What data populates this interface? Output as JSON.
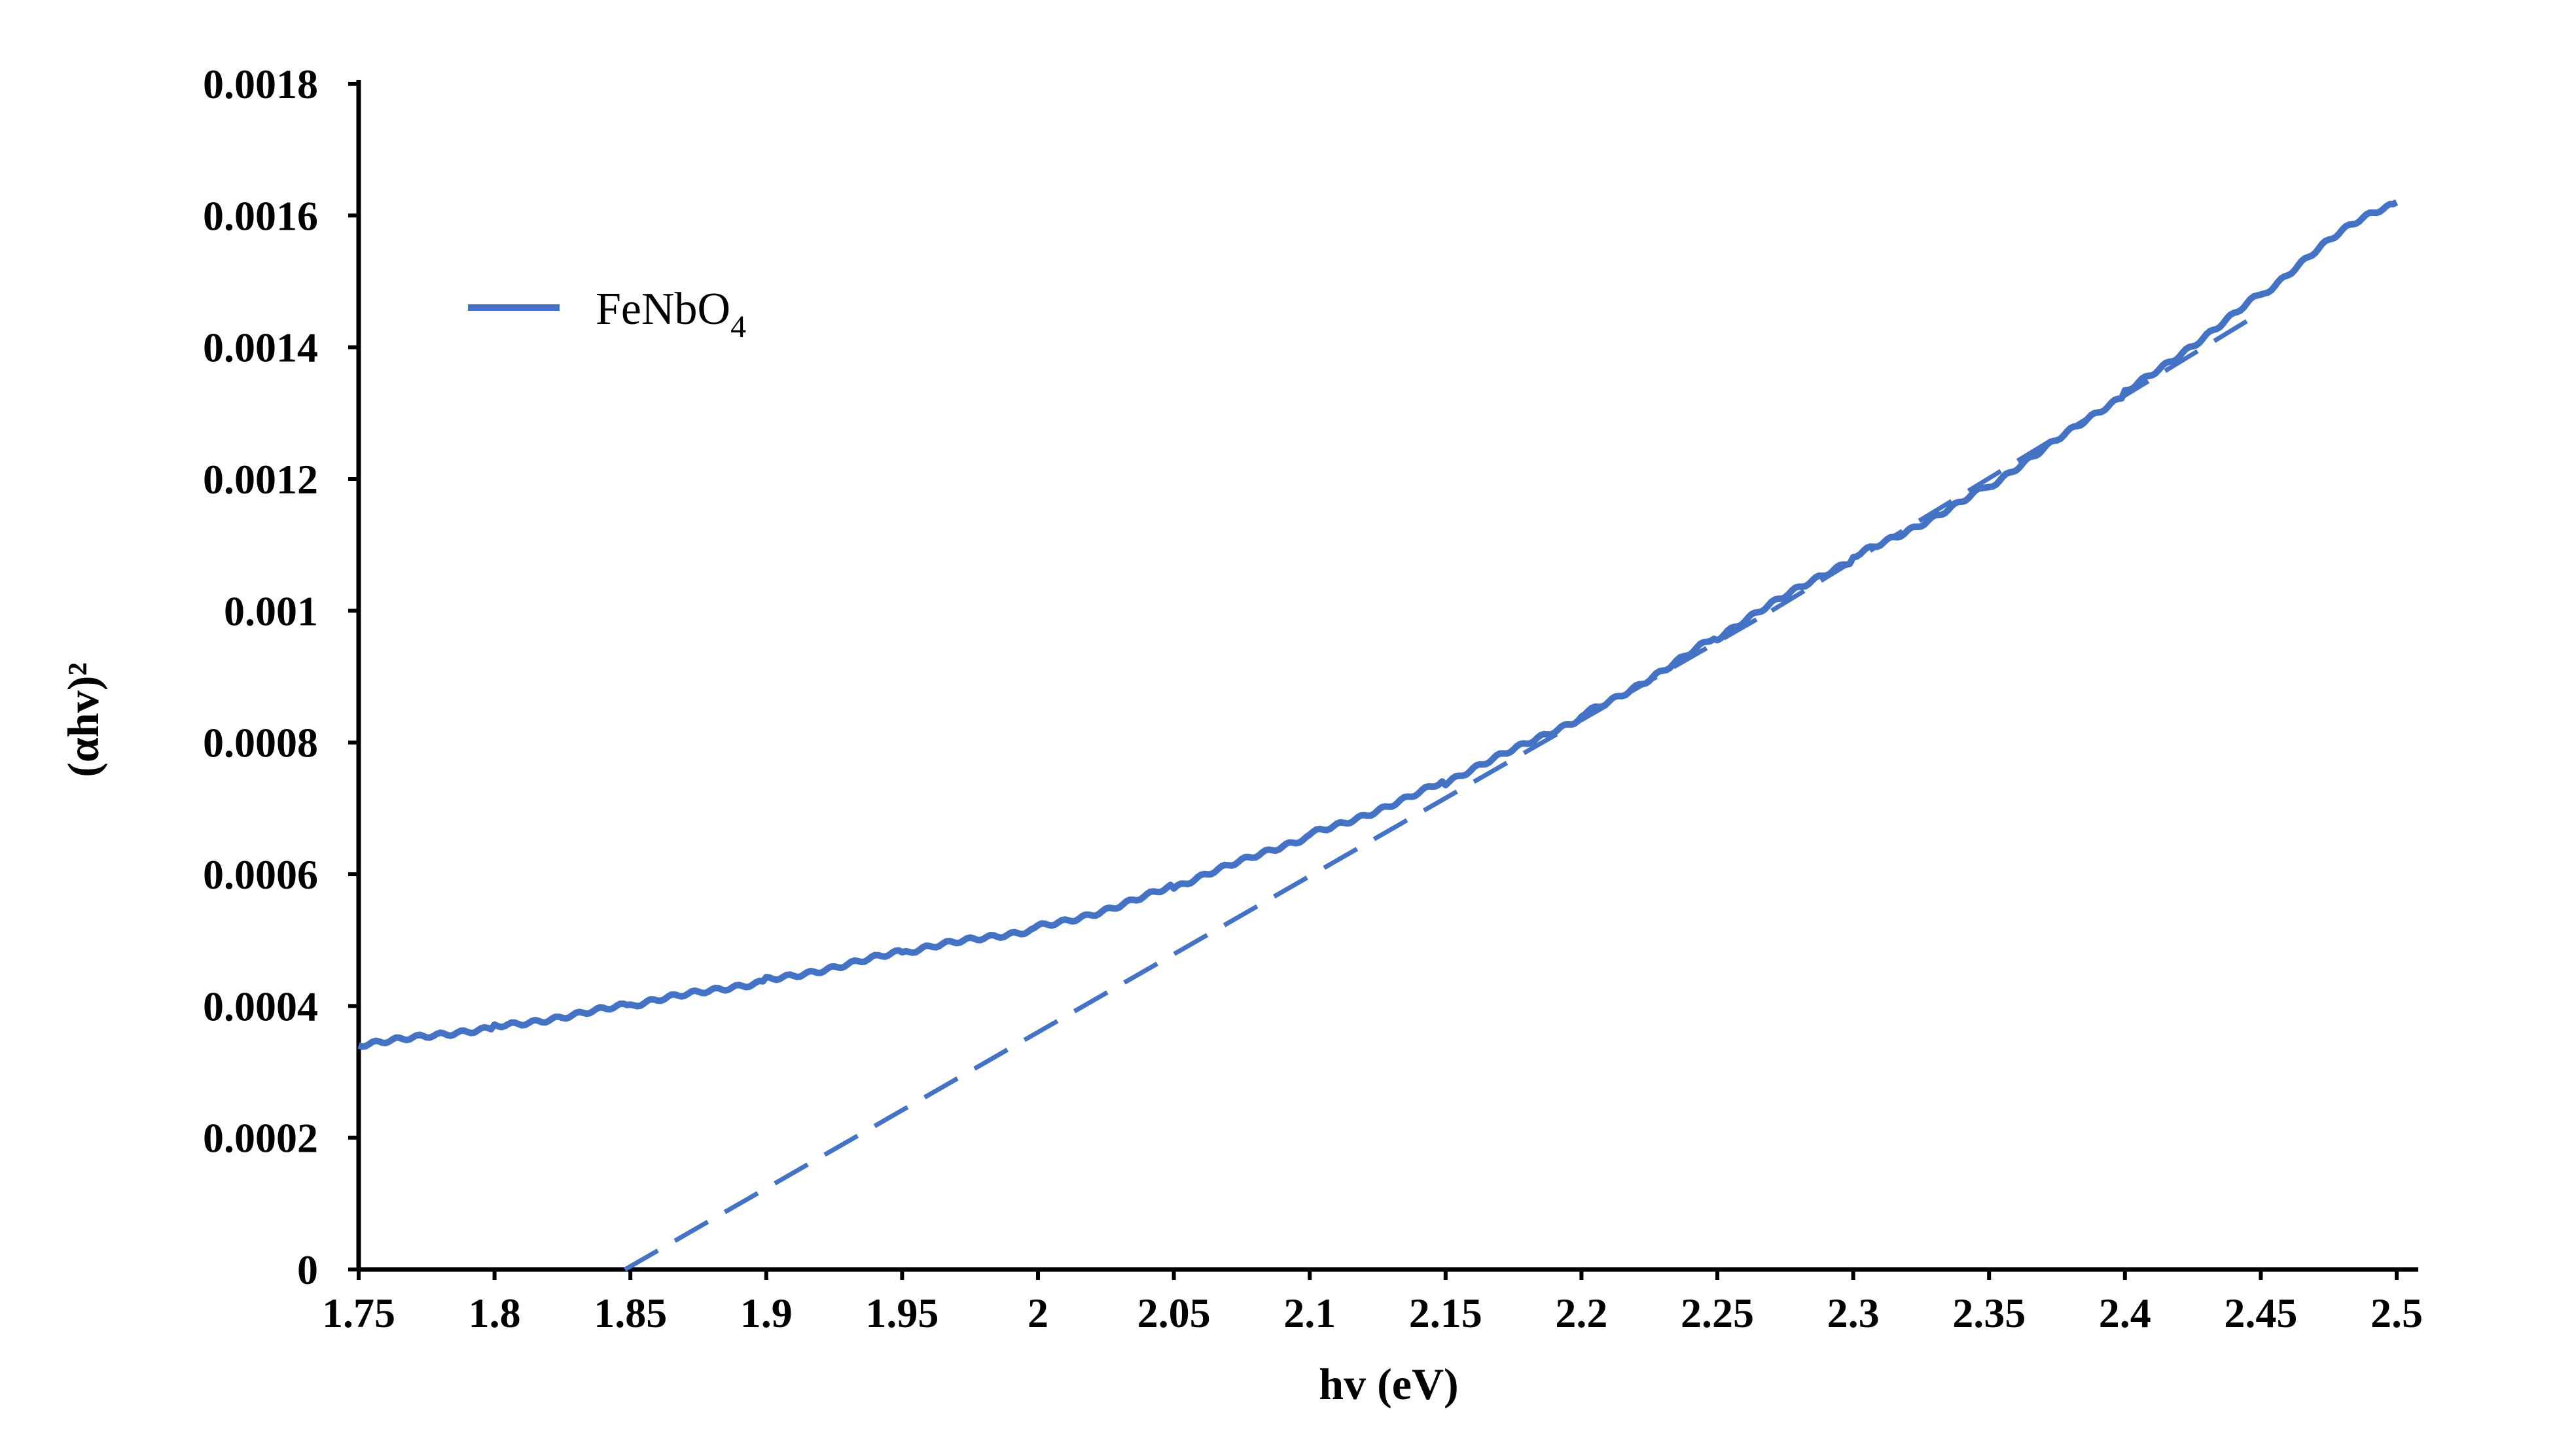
{
  "chart_data": {
    "type": "line",
    "xlabel": "hv (eV)",
    "ylabel": "(αhv)²",
    "xlim": [
      1.75,
      2.5
    ],
    "ylim": [
      0,
      0.0018
    ],
    "x_ticks": [
      "1.75",
      "1.8",
      "1.85",
      "1.9",
      "1.95",
      "2",
      "2.05",
      "2.1",
      "2.15",
      "2.2",
      "2.25",
      "2.3",
      "2.35",
      "2.4",
      "2.45",
      "2.5"
    ],
    "y_ticks": [
      "0",
      "0.0002",
      "0.0004",
      "0.0006",
      "0.0008",
      "0.001",
      "0.0012",
      "0.0014",
      "0.0016",
      "0.0018"
    ],
    "grid": false,
    "legend_position": "top-left",
    "line_color": "#4472C4",
    "series": [
      {
        "name": "FeNbO4",
        "style": "solid",
        "x": [
          1.75,
          1.8,
          1.85,
          1.9,
          1.95,
          2.0,
          2.05,
          2.1,
          2.15,
          2.2,
          2.25,
          2.3,
          2.35,
          2.4,
          2.45,
          2.5
        ],
        "y": [
          0.00034,
          0.00037,
          0.0004,
          0.00044,
          0.00048,
          0.00052,
          0.00058,
          0.00066,
          0.00074,
          0.00084,
          0.00096,
          0.00108,
          0.00119,
          0.00133,
          0.00148,
          0.00162
        ]
      },
      {
        "style": "dashed",
        "x": [
          1.848,
          2.27
        ],
        "y": [
          0,
          0.001
        ]
      },
      {
        "style": "dashed",
        "x": [
          2.27,
          2.445
        ],
        "y": [
          0.001,
          0.00144
        ]
      }
    ]
  },
  "legend": {
    "name_main": "FeNbO",
    "name_sub": "4"
  }
}
